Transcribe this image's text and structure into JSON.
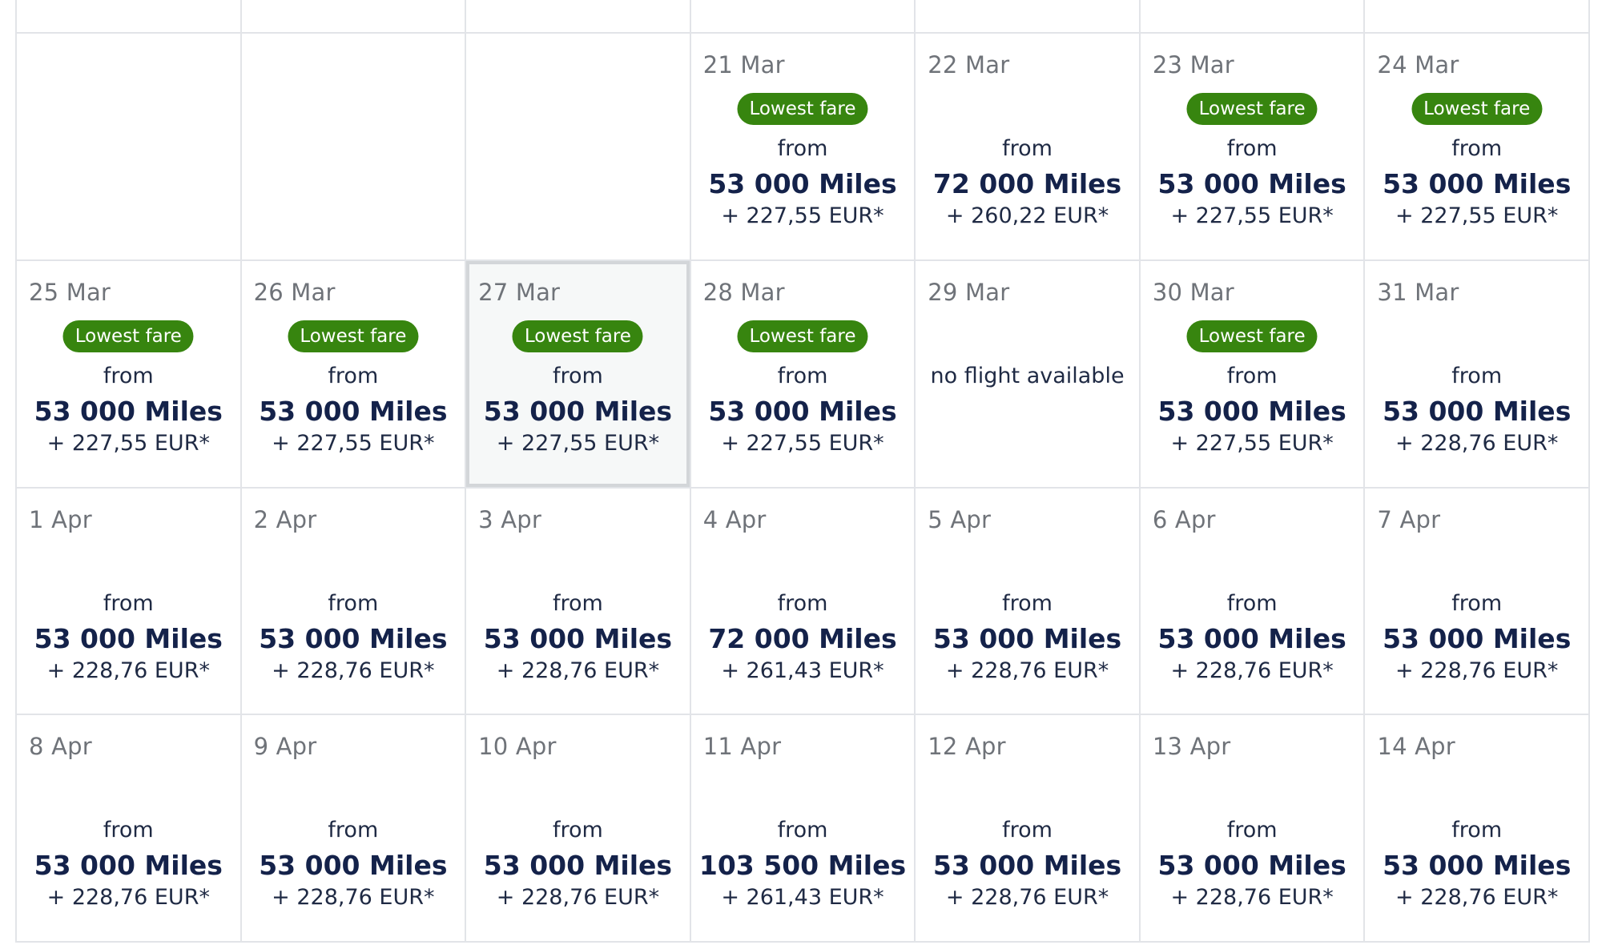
{
  "calendar": {
    "days": [
      {
        "date": "21 Mar",
        "badge": "Lowest fare",
        "from": "from",
        "miles": "53 000 Miles",
        "tax": "+ 227,55 EUR*"
      },
      {
        "date": "22 Mar",
        "badge": null,
        "from": "from",
        "miles": "72 000 Miles",
        "tax": "+ 260,22 EUR*"
      },
      {
        "date": "23 Mar",
        "badge": "Lowest fare",
        "from": "from",
        "miles": "53 000 Miles",
        "tax": "+ 227,55 EUR*"
      },
      {
        "date": "24 Mar",
        "badge": "Lowest fare",
        "from": "from",
        "miles": "53 000 Miles",
        "tax": "+ 227,55 EUR*"
      },
      {
        "date": "25 Mar",
        "badge": "Lowest fare",
        "from": "from",
        "miles": "53 000 Miles",
        "tax": "+ 227,55 EUR*"
      },
      {
        "date": "26 Mar",
        "badge": "Lowest fare",
        "from": "from",
        "miles": "53 000 Miles",
        "tax": "+ 227,55 EUR*"
      },
      {
        "date": "27 Mar",
        "badge": "Lowest fare",
        "from": "from",
        "miles": "53 000 Miles",
        "tax": "+ 227,55 EUR*",
        "selected": true
      },
      {
        "date": "28 Mar",
        "badge": "Lowest fare",
        "from": "from",
        "miles": "53 000 Miles",
        "tax": "+ 227,55 EUR*"
      },
      {
        "date": "29 Mar",
        "badge": null,
        "no_flight": "no flight available"
      },
      {
        "date": "30 Mar",
        "badge": "Lowest fare",
        "from": "from",
        "miles": "53 000 Miles",
        "tax": "+ 227,55 EUR*"
      },
      {
        "date": "31 Mar",
        "badge": null,
        "from": "from",
        "miles": "53 000 Miles",
        "tax": "+ 228,76 EUR*"
      },
      {
        "date": "1 Apr",
        "badge": null,
        "from": "from",
        "miles": "53 000 Miles",
        "tax": "+ 228,76 EUR*"
      },
      {
        "date": "2 Apr",
        "badge": null,
        "from": "from",
        "miles": "53 000 Miles",
        "tax": "+ 228,76 EUR*"
      },
      {
        "date": "3 Apr",
        "badge": null,
        "from": "from",
        "miles": "53 000 Miles",
        "tax": "+ 228,76 EUR*"
      },
      {
        "date": "4 Apr",
        "badge": null,
        "from": "from",
        "miles": "72 000 Miles",
        "tax": "+ 261,43 EUR*"
      },
      {
        "date": "5 Apr",
        "badge": null,
        "from": "from",
        "miles": "53 000 Miles",
        "tax": "+ 228,76 EUR*"
      },
      {
        "date": "6 Apr",
        "badge": null,
        "from": "from",
        "miles": "53 000 Miles",
        "tax": "+ 228,76 EUR*"
      },
      {
        "date": "7 Apr",
        "badge": null,
        "from": "from",
        "miles": "53 000 Miles",
        "tax": "+ 228,76 EUR*"
      },
      {
        "date": "8 Apr",
        "badge": null,
        "from": "from",
        "miles": "53 000 Miles",
        "tax": "+ 228,76 EUR*"
      },
      {
        "date": "9 Apr",
        "badge": null,
        "from": "from",
        "miles": "53 000 Miles",
        "tax": "+ 228,76 EUR*"
      },
      {
        "date": "10 Apr",
        "badge": null,
        "from": "from",
        "miles": "53 000 Miles",
        "tax": "+ 228,76 EUR*"
      },
      {
        "date": "11 Apr",
        "badge": null,
        "from": "from",
        "miles": "103 500 Miles",
        "tax": "+ 261,43 EUR*"
      },
      {
        "date": "12 Apr",
        "badge": null,
        "from": "from",
        "miles": "53 000 Miles",
        "tax": "+ 228,76 EUR*"
      },
      {
        "date": "13 Apr",
        "badge": null,
        "from": "from",
        "miles": "53 000 Miles",
        "tax": "+ 228,76 EUR*"
      },
      {
        "date": "14 Apr",
        "badge": null,
        "from": "from",
        "miles": "53 000 Miles",
        "tax": "+ 228,76 EUR*"
      }
    ]
  },
  "colors": {
    "badge_bg": "#37850f",
    "miles_text": "#14224a",
    "date_text": "#6f7379",
    "grid_line": "#e2e4e8",
    "selected_bg": "#f6f8f8"
  }
}
